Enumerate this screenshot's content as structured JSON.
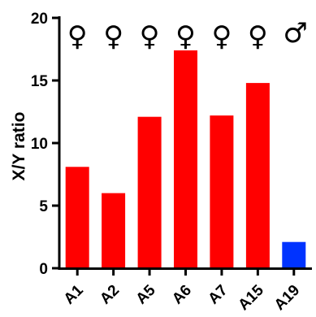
{
  "chart_data": {
    "type": "bar",
    "title": "",
    "xlabel": "",
    "ylabel": "X/Y ratio",
    "ylim": [
      0,
      20
    ],
    "yticks": [
      0,
      5,
      10,
      15,
      20
    ],
    "grid": false,
    "legend": "none",
    "categories": [
      "A1",
      "A2",
      "A5",
      "A6",
      "A7",
      "A15",
      "A19"
    ],
    "values": [
      8.1,
      6.0,
      12.1,
      17.4,
      12.2,
      14.8,
      2.1
    ],
    "bar_colors": [
      "#ff0000",
      "#ff0000",
      "#ff0000",
      "#ff0000",
      "#ff0000",
      "#ff0000",
      "#0033ff"
    ],
    "annotations": [
      "♀",
      "♀",
      "♀",
      "♀",
      "♀",
      "♀",
      "♂"
    ]
  }
}
